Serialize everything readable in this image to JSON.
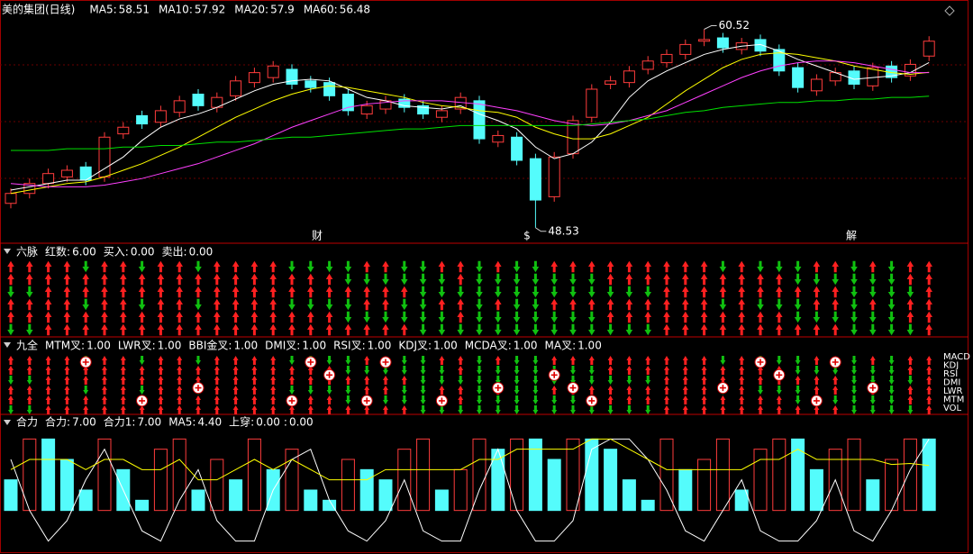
{
  "chart_data": [
    {
      "type": "candlestick",
      "title": "美的集团(日线)",
      "ylim": [
        47.7,
        61.2
      ],
      "open": [
        50.0,
        50.6,
        51.2,
        51.6,
        52.2,
        51.6,
        54.2,
        55.3,
        54.9,
        55.5,
        56.6,
        55.8,
        56.5,
        57.3,
        57.6,
        58.1,
        57.4,
        57.3,
        56.6,
        55.4,
        55.7,
        56.3,
        55.9,
        55.2,
        55.7,
        56.2,
        53.7,
        54.0,
        52.7,
        50.4,
        53.0,
        55.2,
        57.2,
        57.3,
        58.1,
        58.5,
        59.0,
        59.8,
        60.0,
        59.3,
        59.9,
        59.3,
        58.2,
        56.8,
        57.4,
        58.0,
        57.1,
        58.3,
        57.7,
        58.9
      ],
      "high": [
        50.9,
        51.5,
        52.1,
        52.3,
        52.5,
        54.3,
        54.9,
        55.6,
        55.9,
        56.5,
        56.9,
        56.7,
        57.7,
        58.2,
        58.6,
        58.4,
        57.7,
        57.6,
        56.9,
        56.2,
        56.5,
        56.6,
        56.2,
        55.9,
        56.7,
        56.5,
        54.4,
        54.3,
        53.0,
        53.1,
        55.3,
        57.2,
        57.7,
        58.3,
        58.9,
        59.3,
        59.9,
        60.52,
        60.3,
        60.0,
        60.2,
        59.6,
        58.5,
        57.8,
        58.2,
        58.3,
        58.5,
        58.6,
        58.7,
        60.1
      ],
      "low": [
        49.7,
        50.3,
        50.9,
        51.3,
        51.1,
        51.3,
        53.9,
        54.5,
        54.6,
        55.2,
        55.6,
        55.5,
        56.2,
        57.0,
        57.3,
        56.9,
        56.7,
        56.2,
        55.3,
        55.1,
        55.4,
        55.5,
        55.1,
        54.9,
        55.4,
        53.6,
        53.4,
        52.3,
        48.53,
        50.1,
        52.7,
        54.9,
        56.9,
        57.0,
        57.8,
        58.2,
        58.7,
        59.5,
        59.1,
        59.0,
        58.9,
        57.7,
        56.7,
        56.5,
        57.1,
        56.9,
        56.8,
        57.3,
        57.4,
        58.6
      ],
      "close": [
        50.6,
        51.2,
        51.8,
        52.0,
        51.4,
        54.0,
        54.6,
        54.8,
        55.6,
        56.2,
        55.9,
        56.4,
        57.4,
        57.9,
        58.3,
        57.2,
        57.0,
        56.5,
        55.6,
        55.9,
        56.2,
        55.8,
        55.4,
        55.6,
        56.4,
        53.9,
        54.1,
        52.6,
        50.2,
        52.8,
        55.0,
        56.9,
        57.4,
        58.0,
        58.6,
        59.0,
        59.6,
        59.9,
        59.4,
        59.7,
        59.2,
        58.0,
        57.0,
        57.5,
        57.9,
        57.2,
        58.2,
        57.6,
        58.4,
        59.8
      ],
      "up_color": "#ff3c3c",
      "down_color": "#54fcfc",
      "series": [
        {
          "name": "MA5:",
          "legend_value": 58.51,
          "color": "#ffffff",
          "values": [
            50.8,
            51.0,
            51.2,
            51.4,
            51.4,
            52.1,
            52.8,
            53.8,
            54.6,
            55.1,
            55.4,
            55.8,
            56.3,
            56.8,
            57.2,
            57.4,
            57.5,
            57.4,
            56.9,
            56.4,
            56.2,
            55.9,
            55.8,
            55.7,
            55.9,
            55.4,
            55.0,
            54.5,
            53.4,
            52.7,
            53.0,
            53.7,
            54.9,
            56.4,
            57.4,
            58.0,
            58.5,
            59.0,
            59.3,
            59.5,
            59.6,
            59.2,
            58.7,
            58.3,
            57.9,
            57.5,
            57.6,
            57.7,
            57.9,
            58.51
          ]
        },
        {
          "name": "MA10:",
          "legend_value": 57.92,
          "color": "#ffff00",
          "values": [
            50.6,
            50.8,
            51.0,
            51.2,
            51.3,
            51.6,
            52.0,
            52.4,
            52.9,
            53.4,
            54.0,
            54.6,
            55.2,
            55.7,
            56.2,
            56.6,
            56.9,
            57.1,
            57.0,
            56.8,
            56.6,
            56.4,
            56.1,
            55.9,
            55.8,
            55.6,
            55.5,
            55.2,
            54.6,
            54.2,
            53.9,
            53.9,
            54.2,
            54.7,
            55.2,
            56.0,
            56.8,
            57.5,
            58.2,
            58.7,
            59.0,
            59.1,
            59.0,
            58.8,
            58.6,
            58.3,
            58.1,
            57.9,
            57.8,
            57.92
          ]
        },
        {
          "name": "MA20:",
          "legend_value": 57.9,
          "color": "#ff40ff",
          "values": [
            51.2,
            51.1,
            51.0,
            51.0,
            51.0,
            51.1,
            51.3,
            51.5,
            51.8,
            52.1,
            52.4,
            52.8,
            53.2,
            53.6,
            54.1,
            54.6,
            55.0,
            55.4,
            55.8,
            56.0,
            56.1,
            56.2,
            56.2,
            56.2,
            56.1,
            56.0,
            55.8,
            55.6,
            55.3,
            55.0,
            54.8,
            54.7,
            54.8,
            55.0,
            55.3,
            55.6,
            56.1,
            56.6,
            57.1,
            57.6,
            58.0,
            58.3,
            58.5,
            58.6,
            58.6,
            58.5,
            58.3,
            58.1,
            57.9,
            57.9
          ]
        },
        {
          "name": "MA60:",
          "legend_value": 56.48,
          "color": "#00e000",
          "values": [
            53.2,
            53.2,
            53.2,
            53.3,
            53.3,
            53.3,
            53.4,
            53.4,
            53.5,
            53.5,
            53.6,
            53.7,
            53.7,
            53.8,
            53.9,
            54.0,
            54.0,
            54.1,
            54.2,
            54.3,
            54.4,
            54.5,
            54.5,
            54.6,
            54.7,
            54.7,
            54.7,
            54.7,
            54.7,
            54.7,
            54.7,
            54.8,
            54.9,
            55.0,
            55.1,
            55.3,
            55.5,
            55.6,
            55.8,
            55.9,
            56.0,
            56.1,
            56.1,
            56.2,
            56.2,
            56.3,
            56.3,
            56.4,
            56.4,
            56.48
          ]
        }
      ],
      "high_label": 60.52,
      "low_label": 48.53,
      "events": [
        {
          "text": "财",
          "color": "#9fb0ff"
        },
        {
          "text": "$",
          "color": "#ff3c3c"
        },
        {
          "text": "解",
          "color": "#9fb0ff"
        }
      ]
    },
    {
      "type": "signal",
      "title": "六脉",
      "items": [
        {
          "label": "红数:",
          "value": {
            "value": 6,
            "label": "6.00"
          },
          "color": "#ffff00"
        },
        {
          "label": "买入:",
          "value": {
            "value": 0,
            "label": "0.00"
          },
          "color": "#ffffff"
        },
        {
          "label": "卖出:",
          "value": {
            "value": 0,
            "label": "0.00"
          },
          "color": "#54fcfc"
        }
      ]
    },
    {
      "type": "signal",
      "title": "九全",
      "items": [
        {
          "label": "MTM叉:",
          "value": {
            "value": 1,
            "label": "1.00"
          },
          "color": "#ffffff"
        },
        {
          "label": "LWR叉:",
          "value": {
            "value": 1,
            "label": "1.00"
          },
          "color": "#ffffff"
        },
        {
          "label": "BBI金叉:",
          "value": {
            "value": 1,
            "label": "1.00"
          },
          "color": "#ffffff"
        },
        {
          "label": "DMI叉:",
          "value": {
            "value": 1,
            "label": "1.00"
          },
          "color": "#ffffff"
        },
        {
          "label": "RSI叉:",
          "value": {
            "value": 1,
            "label": "1.00"
          },
          "color": "#ffffff"
        },
        {
          "label": "KDJ叉:",
          "value": {
            "value": 1,
            "label": "1.00"
          },
          "color": "#ffffff"
        },
        {
          "label": "MCDA叉:",
          "value": {
            "value": 1,
            "label": "1.00"
          },
          "color": "#ffffff"
        },
        {
          "label": "MA叉:",
          "value": {
            "value": 1,
            "label": "1.00"
          },
          "color": "#ffffff"
        }
      ],
      "side_labels": [
        "MACD",
        "KDJ",
        "RSI",
        "DMI",
        "LWR",
        "MTM",
        "VOL"
      ]
    },
    {
      "type": "bar",
      "title": "合力",
      "ylim": [
        -4,
        8
      ],
      "series": [
        {
          "name": "合力:",
          "kind": "bar",
          "legend_value": {
            "value": 7,
            "label": "7.00"
          },
          "color": "#54fcfc",
          "values": [
            3,
            7,
            7,
            5,
            2,
            7,
            4,
            1,
            6,
            7,
            2,
            5,
            3,
            7,
            4,
            6,
            2,
            1,
            5,
            4,
            3,
            6,
            7,
            2,
            4,
            7,
            6,
            7,
            7,
            5,
            7,
            7,
            6,
            3,
            1,
            7,
            4,
            5,
            7,
            2,
            6,
            7,
            7,
            4,
            6,
            7,
            3,
            5,
            7,
            7
          ]
        },
        {
          "name": "合力1:",
          "kind": "line",
          "legend_value": {
            "value": 7,
            "label": "7.00"
          },
          "color": "#ffffff",
          "values": [
            5,
            0,
            -3,
            -1,
            3,
            6,
            2,
            -2,
            -3,
            1,
            4,
            -1,
            -3,
            -3,
            2,
            5,
            6,
            1,
            -2,
            -3,
            -1,
            3,
            -2,
            -3,
            -3,
            2,
            6,
            0,
            -3,
            -3,
            -1,
            6,
            7,
            7,
            5,
            2,
            -2,
            -3,
            0,
            3,
            -2,
            -3,
            -3,
            -1,
            3,
            -2,
            -3,
            0,
            4,
            7
          ]
        },
        {
          "name": "MA5:",
          "kind": "line",
          "legend_value": {
            "value": 4.4,
            "label": "4.40"
          },
          "color": "#ffff00",
          "values": [
            4,
            5,
            5,
            5,
            4,
            5,
            5,
            4,
            4,
            5,
            3,
            3,
            4,
            5,
            4,
            5,
            4,
            3,
            3,
            3,
            4,
            4,
            4,
            4,
            4,
            5,
            5,
            6,
            6,
            6,
            6,
            7,
            7,
            6,
            5,
            4,
            4,
            4,
            4,
            4,
            5,
            5,
            6,
            5,
            5,
            5,
            5,
            4.5,
            4.6,
            4.4
          ]
        }
      ],
      "items": [
        {
          "label": "上穿:",
          "value": {
            "value": 0,
            "label": "0.00"
          },
          "color": "#ff40ff"
        },
        {
          "label": ":",
          "value": {
            "value": 0,
            "label": "0.00"
          },
          "color": "#ff40ff"
        }
      ],
      "up_color": "#ff3c3c"
    }
  ]
}
